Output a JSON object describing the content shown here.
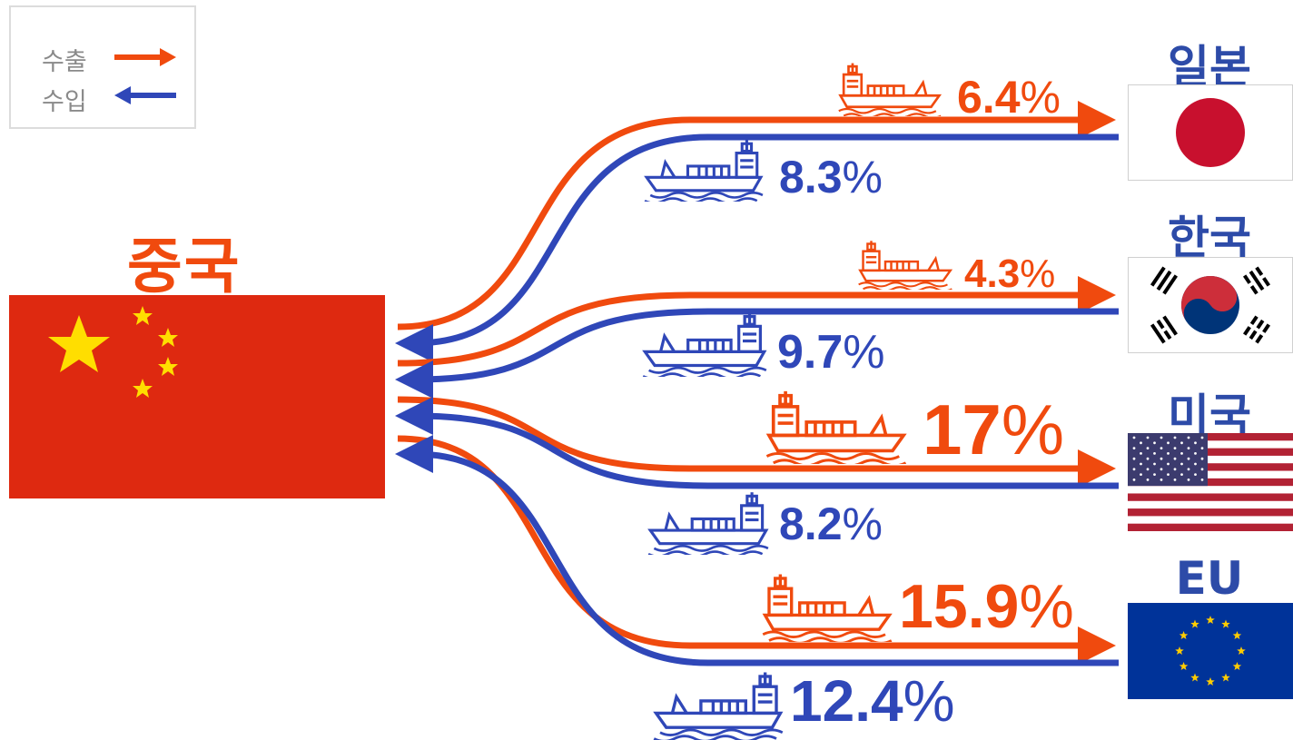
{
  "legend": {
    "export_label": "수출",
    "import_label": "수입"
  },
  "origin": {
    "label": "중국"
  },
  "countries": [
    {
      "key": "japan",
      "label": "일본",
      "export_value": "6.4",
      "import_value": "8.3"
    },
    {
      "key": "korea",
      "label": "한국",
      "export_value": "4.3",
      "import_value": "9.7"
    },
    {
      "key": "usa",
      "label": "미국",
      "export_value": "17",
      "import_value": "8.2"
    },
    {
      "key": "eu",
      "label": "EU",
      "export_value": "15.9",
      "import_value": "12.4"
    }
  ],
  "percent_sign": "%",
  "colors": {
    "export": "#f04a0e",
    "import": "#2f47b8",
    "label": "#2d4ba8",
    "china_flag": "#de2910",
    "china_star": "#ffde00"
  }
}
